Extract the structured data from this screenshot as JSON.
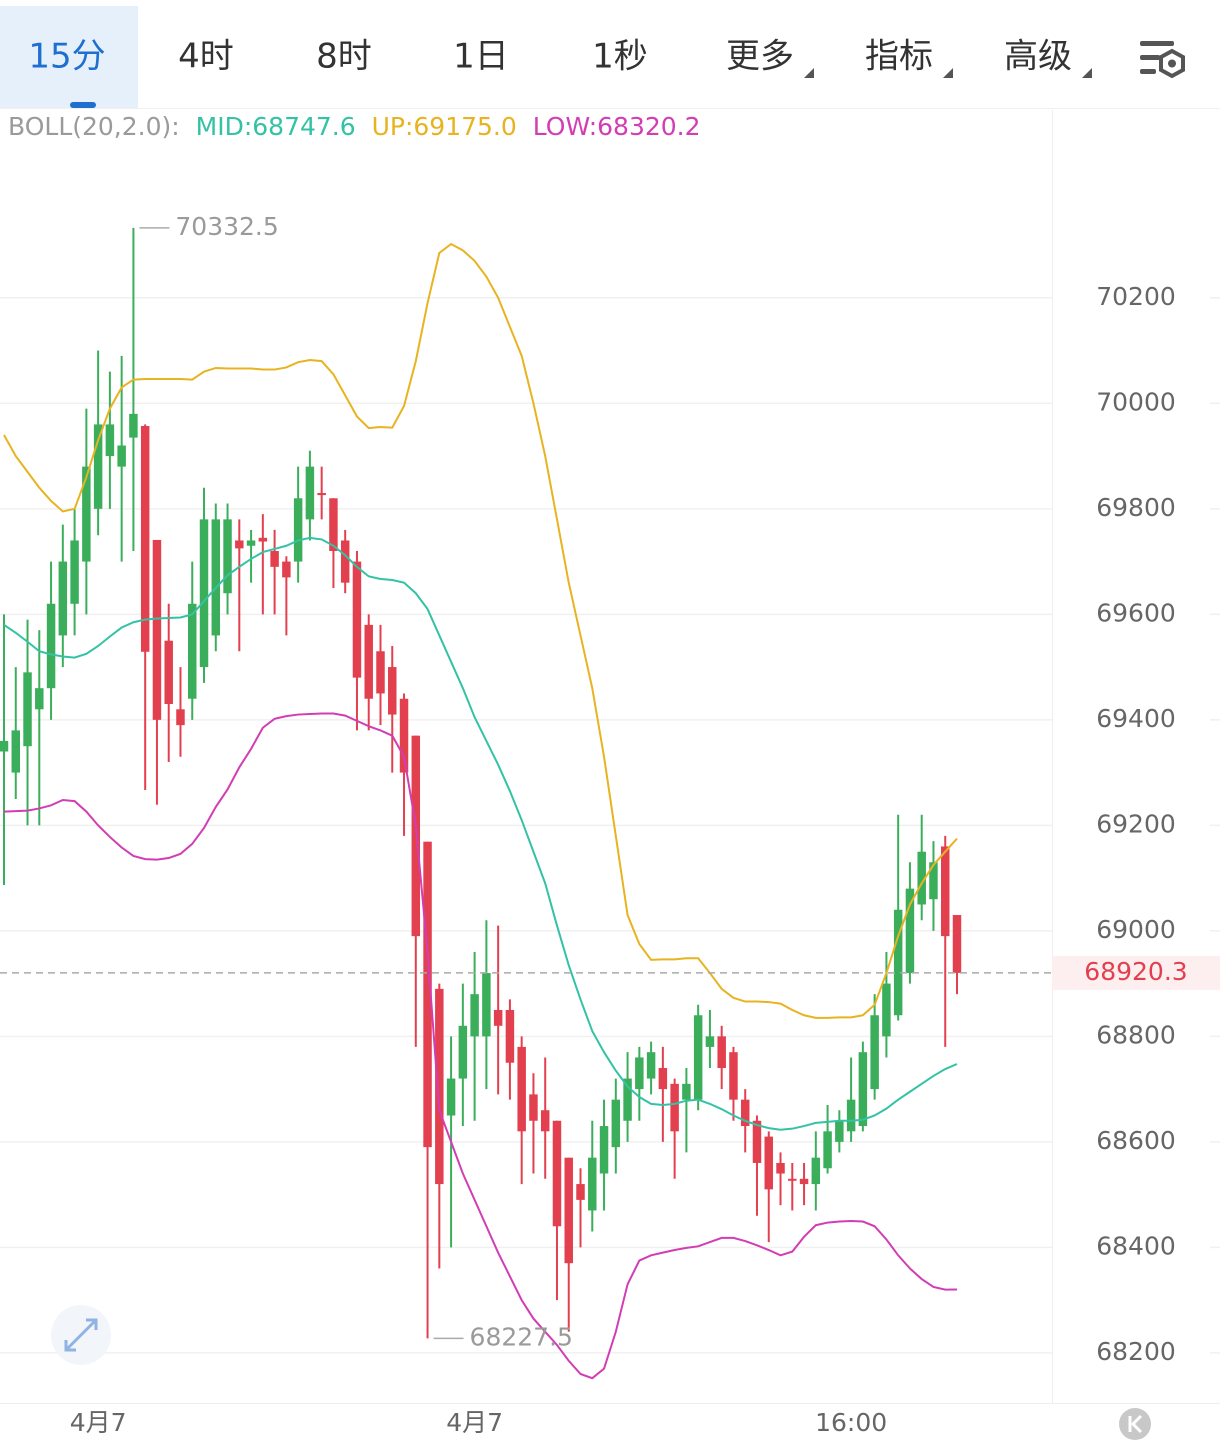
{
  "tabs": [
    "15分",
    "4时",
    "8时",
    "1日",
    "1秒",
    "更多",
    "指标",
    "高级"
  ],
  "chart_data": {
    "type": "candlestick",
    "indicator": "BOLL(20,2.0):",
    "categories": [
      null,
      null,
      null,
      null,
      null,
      null,
      null,
      null,
      "4月7",
      null,
      null,
      null,
      null,
      null,
      null,
      null,
      null,
      null,
      null,
      null,
      null,
      null,
      null,
      null,
      null,
      null,
      null,
      null,
      null,
      null,
      null,
      null,
      null,
      null,
      null,
      null,
      null,
      null,
      null,
      null,
      "4月7",
      null,
      null,
      null,
      null,
      null,
      null,
      null,
      null,
      null,
      null,
      null,
      null,
      null,
      null,
      null,
      null,
      null,
      null,
      null,
      null,
      null,
      null,
      null,
      null,
      null,
      null,
      null,
      null,
      null,
      null,
      null,
      "16:00",
      null,
      null,
      null,
      null,
      null,
      null,
      null,
      null,
      null
    ],
    "open": [
      69340,
      69300,
      69350,
      69420,
      69460,
      69560,
      69620,
      69700,
      69800,
      69900,
      69880,
      69935,
      69957,
      69741,
      69550,
      69420,
      69440,
      69500,
      69560,
      69640,
      69740,
      69730,
      69745,
      69720,
      69700,
      69700,
      69780,
      69830,
      69820,
      69740,
      69700,
      69580,
      69530,
      69500,
      69440,
      69370,
      69169,
      68890,
      68650,
      68720,
      68800,
      68800,
      68850,
      68850,
      68780,
      68690,
      68660,
      68640,
      68570,
      68520,
      68470,
      68540,
      68590,
      68640,
      68700,
      68720,
      68740,
      68710,
      68680,
      68680,
      68780,
      68800,
      68770,
      68680,
      68640,
      68610,
      68560,
      68530,
      68530,
      68520,
      68550,
      68600,
      68620,
      68630,
      68700,
      68800,
      68840,
      68920,
      69050,
      69060,
      69160,
      69030
    ],
    "high": [
      69600,
      69500,
      69590,
      69570,
      69700,
      69770,
      69800,
      69990,
      70100,
      70060,
      70090,
      70332.5,
      69960,
      69741,
      69620,
      69500,
      69700,
      69840,
      69810,
      69810,
      69780,
      69760,
      69790,
      69760,
      69710,
      69880,
      69910,
      69880,
      69820,
      69760,
      69720,
      69600,
      69580,
      69540,
      69450,
      69370,
      69169,
      68900,
      68800,
      68900,
      68960,
      69020,
      69010,
      68870,
      68800,
      68730,
      68760,
      68640,
      68570,
      68550,
      68640,
      68680,
      68720,
      68770,
      68780,
      68790,
      68780,
      68720,
      68740,
      68860,
      68850,
      68820,
      68780,
      68700,
      68650,
      68620,
      68580,
      68560,
      68560,
      68620,
      68670,
      68660,
      68760,
      68790,
      68880,
      68960,
      69220,
      69130,
      69220,
      69170,
      69180,
      69030
    ],
    "low": [
      69087,
      69250,
      69200,
      69200,
      69400,
      69500,
      69560,
      69600,
      69750,
      69800,
      69700,
      69720,
      69267,
      69239,
      69320,
      69330,
      69400,
      69470,
      69530,
      69600,
      69530,
      69660,
      69600,
      69600,
      69560,
      69660,
      69740,
      69780,
      69650,
      69640,
      69380,
      69380,
      69390,
      69300,
      69180,
      68780,
      68227.5,
      68360,
      68400,
      68630,
      68640,
      68700,
      68690,
      68680,
      68520,
      68540,
      68530,
      68300,
      68240,
      68400,
      68430,
      68470,
      68540,
      68600,
      68640,
      68690,
      68600,
      68530,
      68580,
      68660,
      68740,
      68700,
      68640,
      68580,
      68460,
      68410,
      68480,
      68470,
      68480,
      68470,
      68540,
      68580,
      68600,
      68620,
      68680,
      68760,
      68830,
      68900,
      69020,
      69000,
      68780,
      68880
    ],
    "close": [
      69360,
      69380,
      69490,
      69460,
      69620,
      69700,
      69740,
      69880,
      69960,
      69960,
      69920,
      69980,
      69529,
      69400,
      69430,
      69390,
      69620,
      69780,
      69780,
      69780,
      69725,
      69740,
      69738,
      69690,
      69670,
      69820,
      69880,
      69826,
      69720,
      69660,
      69480,
      69440,
      69450,
      69410,
      69300,
      68990,
      68590,
      68520,
      68720,
      68820,
      68880,
      68920,
      68820,
      68750,
      68620,
      68640,
      68620,
      68440,
      68370,
      68490,
      68570,
      68630,
      68680,
      68720,
      68760,
      68770,
      68700,
      68620,
      68710,
      68840,
      68800,
      68740,
      68680,
      68630,
      68560,
      68510,
      68540,
      68528,
      68520,
      68570,
      68620,
      68640,
      68680,
      68770,
      68840,
      68900,
      69040,
      69080,
      69150,
      69130,
      68990,
      68920.3
    ],
    "up_color": "#3bae5b",
    "down_color": "#e3404f",
    "bands": [
      {
        "legend": "MID:68747.6",
        "color": "#34c2a5",
        "values": [
          69580,
          69565,
          69548,
          69530,
          69524,
          69520,
          69518,
          69525,
          69540,
          69558,
          69575,
          69585,
          69590,
          69592,
          69593,
          69594,
          69600,
          69625,
          69650,
          69674,
          69690,
          69705,
          69718,
          69724,
          69730,
          69740,
          69745,
          69742,
          69730,
          69712,
          69690,
          69672,
          69667,
          69665,
          69660,
          69640,
          69610,
          69560,
          69510,
          69460,
          69405,
          69360,
          69315,
          69265,
          69210,
          69150,
          69090,
          69010,
          68935,
          68870,
          68810,
          68770,
          68735,
          68705,
          68685,
          68672,
          68670,
          68672,
          68678,
          68680,
          68672,
          68662,
          68650,
          68640,
          68632,
          68626,
          68623,
          68625,
          68630,
          68636,
          68638,
          68640,
          68640,
          68642,
          68650,
          68663,
          68680,
          68695,
          68710,
          68725,
          68738,
          68747.6
        ]
      },
      {
        "legend": "UP:69175.0",
        "color": "#e8b320",
        "values": [
          69940,
          69900,
          69870,
          69840,
          69815,
          69795,
          69800,
          69860,
          69930,
          69990,
          70030,
          70045,
          70046,
          70046,
          70046,
          70046,
          70045,
          70060,
          70067,
          70066,
          70066,
          70066,
          70064,
          70064,
          70068,
          70078,
          70082,
          70080,
          70055,
          70015,
          69975,
          69953,
          69955,
          69954,
          69995,
          70080,
          70190,
          70285,
          70302,
          70290,
          70270,
          70240,
          70200,
          70145,
          70090,
          70000,
          69900,
          69780,
          69660,
          69560,
          69460,
          69330,
          69180,
          69030,
          68975,
          68945,
          68946,
          68946,
          68948,
          68948,
          68920,
          68890,
          68873,
          68866,
          68866,
          68865,
          68862,
          68850,
          68840,
          68835,
          68835,
          68836,
          68836,
          68840,
          68860,
          68920,
          68990,
          69050,
          69090,
          69125,
          69150,
          69175
        ]
      },
      {
        "legend": "LOW:68320.2",
        "color": "#d23db3",
        "values": [
          69226,
          69227,
          69228,
          69232,
          69238,
          69248,
          69246,
          69226,
          69200,
          69178,
          69158,
          69142,
          69136,
          69135,
          69138,
          69146,
          69165,
          69195,
          69235,
          69268,
          69310,
          69345,
          69385,
          69402,
          69407,
          69410,
          69411,
          69412,
          69412,
          69408,
          69398,
          69388,
          69380,
          69370,
          69330,
          69200,
          68960,
          68660,
          68600,
          68540,
          68490,
          68440,
          68390,
          68345,
          68300,
          68265,
          68240,
          68215,
          68185,
          68160,
          68152,
          68170,
          68240,
          68330,
          68375,
          68385,
          68390,
          68395,
          68399,
          68402,
          68410,
          68418,
          68418,
          68412,
          68404,
          68395,
          68385,
          68392,
          68420,
          68442,
          68447,
          68449,
          68450,
          68449,
          68440,
          68415,
          68385,
          68360,
          68340,
          68325,
          68320,
          68320.2
        ]
      }
    ],
    "ylim": [
      68105,
      70556
    ],
    "yticks": [
      68200,
      68400,
      68600,
      68800,
      69000,
      69200,
      69400,
      69600,
      69800,
      70000,
      70200
    ],
    "grid": true,
    "last_price_line": true
  }
}
